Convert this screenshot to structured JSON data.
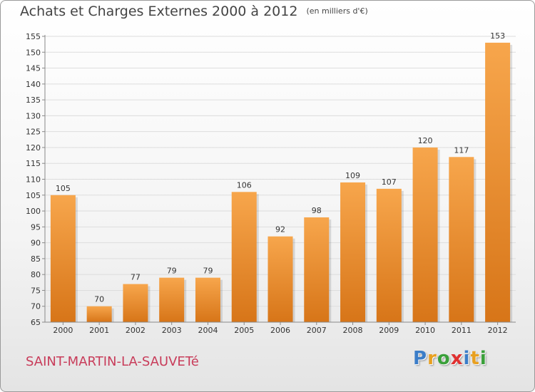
{
  "header": {
    "title": "Achats et Charges Externes 2000 à 2012",
    "unit": "(en milliers d'€)"
  },
  "footer": {
    "location": "SAINT-MARTIN-LA-SAUVETé",
    "brand_letters": [
      {
        "char": "P",
        "color": "#3b7dc8"
      },
      {
        "char": "r",
        "color": "#e8a020"
      },
      {
        "char": "o",
        "color": "#3aa03a"
      },
      {
        "char": "x",
        "color": "#e03030"
      },
      {
        "char": "i",
        "color": "#3b7dc8"
      },
      {
        "char": "t",
        "color": "#e8a020"
      },
      {
        "char": "i",
        "color": "#3aa03a"
      }
    ]
  },
  "colors": {
    "bar_light": "#f7a64c",
    "bar_dark": "#d77518",
    "gridline": "#dddddd",
    "axis": "#888888",
    "text": "#333333"
  },
  "chart_data": {
    "type": "bar",
    "categories": [
      "2000",
      "2001",
      "2002",
      "2003",
      "2004",
      "2005",
      "2006",
      "2007",
      "2008",
      "2009",
      "2010",
      "2011",
      "2012"
    ],
    "values": [
      105,
      70,
      77,
      79,
      79,
      106,
      92,
      98,
      109,
      107,
      120,
      117,
      153
    ],
    "ylim": [
      65,
      155
    ],
    "yticks": [
      65,
      70,
      75,
      80,
      85,
      90,
      95,
      100,
      105,
      110,
      115,
      120,
      125,
      130,
      135,
      140,
      145,
      150,
      155
    ],
    "grid": true,
    "xlabel": "",
    "ylabel": ""
  }
}
